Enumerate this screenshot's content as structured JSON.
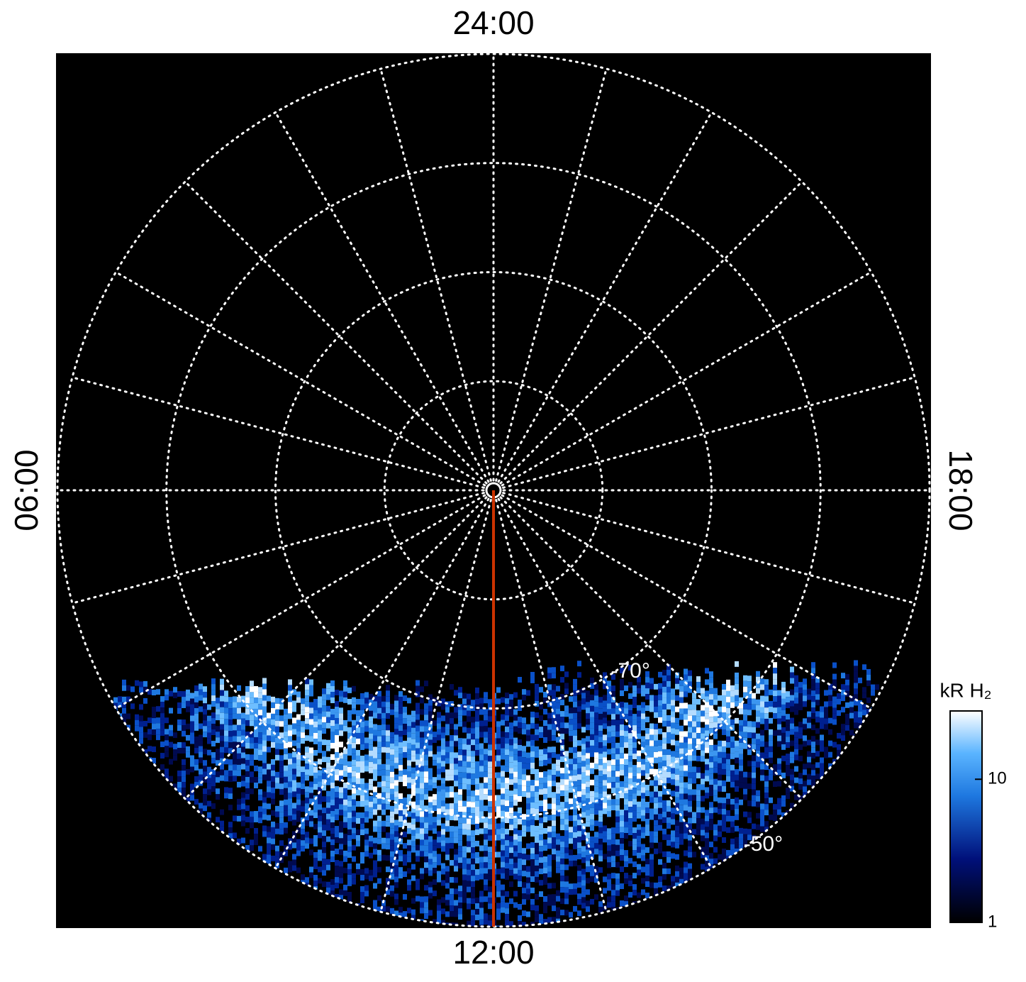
{
  "chart_data": {
    "type": "polar-map",
    "lt_ticks": [
      {
        "value": 24,
        "label": "24:00"
      },
      {
        "value": 6,
        "label": "06:00"
      },
      {
        "value": 12,
        "label": "12:00"
      },
      {
        "value": 18,
        "label": "18:00"
      }
    ],
    "rlim": [
      -90,
      -50
    ],
    "rgrid": [
      -80,
      -70,
      -60,
      -50
    ],
    "rlabels": [
      {
        "value": -70,
        "label": "-70°"
      },
      {
        "value": -50,
        "label": "-50°"
      }
    ],
    "highlight_lt": 12,
    "highlight_color": "#cc3300",
    "colorbar": {
      "label": "kR H₂",
      "log": true,
      "clim": [
        1,
        30
      ],
      "ticks": [
        1,
        10
      ]
    }
  }
}
